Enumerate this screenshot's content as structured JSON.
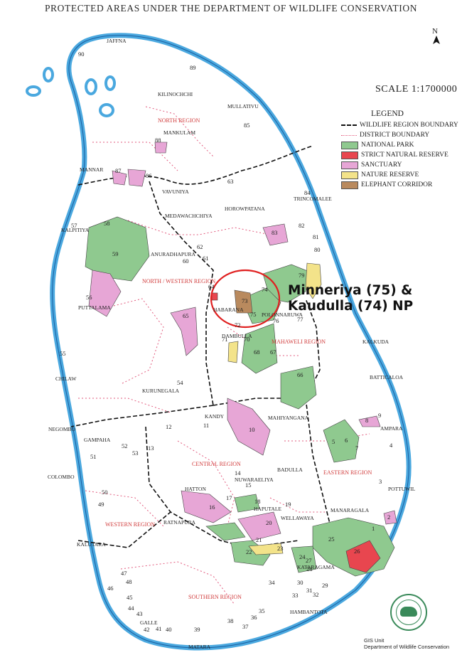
{
  "title": "PROTECTED AREAS UNDER THE DEPARTMENT OF WILDLIFE CONSERVATION",
  "scale": "SCALE  1:1700000",
  "north": "N",
  "legend": {
    "title": "LEGEND",
    "items": [
      {
        "label": "WILDLIFE REGION BOUNDARY",
        "kind": "line-black"
      },
      {
        "label": "DISTRICT BOUNDARY",
        "kind": "line-pink"
      },
      {
        "label": "NATIONAL PARK",
        "color": "#8fc98f"
      },
      {
        "label": "STRICT NATURAL RESERVE",
        "color": "#e8464f"
      },
      {
        "label": "SANCTUARY",
        "color": "#e7a6d6"
      },
      {
        "label": "NATURE RESERVE",
        "color": "#f3e38a"
      },
      {
        "label": "ELEPHANT CORRIDOR",
        "color": "#b98a5e"
      }
    ]
  },
  "callout": {
    "line1": "Minneriya (75) &",
    "line2": "Kaudulla (74) NP"
  },
  "footer": {
    "line1": "GIS Unit",
    "line2": "Department of Wildlife Conservation"
  },
  "colors": {
    "national_park": "#8fc98f",
    "strict_reserve": "#e8464f",
    "sanctuary": "#e7a6d6",
    "nature_reserve": "#f3e38a",
    "corridor": "#b98a5e",
    "sea_edge": "#4aa8df",
    "region_label": "#d03a3a"
  },
  "regions": [
    "NORTH REGION",
    "NORTH / WESTERN REGION",
    "MAHAWELI REGION",
    "CENTRAL REGION",
    "EASTERN REGION",
    "WESTERN REGION",
    "SOUTHERN REGION"
  ],
  "places": [
    "JAFFNA",
    "KILINOCHCHI",
    "MULLATIVU",
    "MANKULAM",
    "MANNAR",
    "VAVUNIYA",
    "TRINCOMALEE",
    "HOROWPATANA",
    "MEDAWACHCHIYA",
    "KALPITIYA",
    "ANURADHAPURA",
    "PUTTALAMA",
    "HABARANA",
    "POLONNARUWA",
    "DAMBULLA",
    "KALKUDA",
    "BATTICALOA",
    "CHILAW",
    "KURUNEGALA",
    "MAHIYANGANA",
    "KANDY",
    "NEGOMBO",
    "GAMPAHA",
    "AMPARA",
    "POTTUWIL",
    "COLOMBO",
    "BADULLA",
    "NUWARAELIYA",
    "HATTON",
    "HAPUTALE",
    "WELLAWAYA",
    "MANARAGALA",
    "RATNAPURA",
    "KALUTARA",
    "KATARAGAMA",
    "HAMBANTOTA",
    "GALLE",
    "MATARA"
  ],
  "numbers": [
    "1",
    "2",
    "3",
    "4",
    "5",
    "6",
    "7",
    "8",
    "9",
    "10",
    "11",
    "12",
    "13",
    "14",
    "15",
    "16",
    "17",
    "18",
    "19",
    "20",
    "21",
    "22",
    "23",
    "24",
    "25",
    "26",
    "27",
    "28",
    "29",
    "30",
    "31",
    "32",
    "33",
    "34",
    "35",
    "36",
    "37",
    "38",
    "39",
    "40",
    "41",
    "42",
    "43",
    "44",
    "45",
    "46",
    "47",
    "48",
    "49",
    "50",
    "51",
    "52",
    "53",
    "54",
    "55",
    "56",
    "57",
    "58",
    "59",
    "60",
    "61",
    "62",
    "63",
    "64",
    "65",
    "66",
    "67",
    "68",
    "70",
    "71",
    "72",
    "73",
    "74",
    "75",
    "76",
    "77",
    "79",
    "80",
    "81",
    "82",
    "83",
    "84",
    "85",
    "86",
    "87",
    "88",
    "89",
    "90"
  ]
}
